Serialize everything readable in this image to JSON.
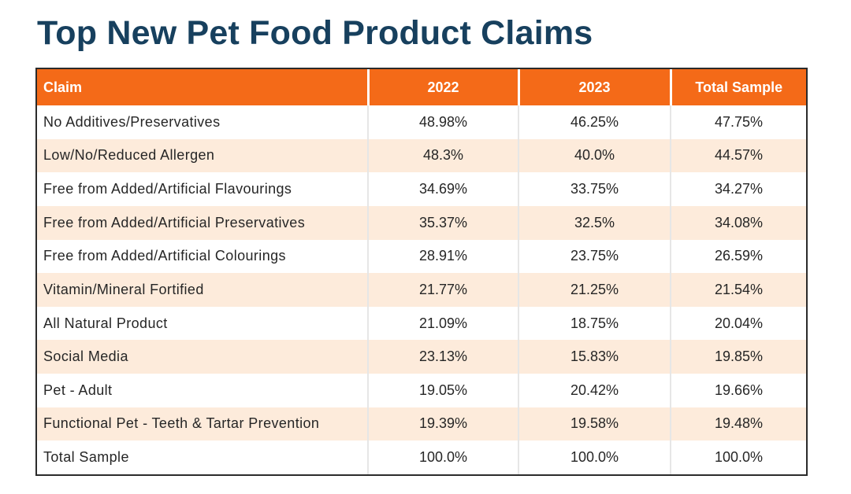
{
  "title": "Top New Pet Food Product Claims",
  "colors": {
    "header_bg": "#f46a18",
    "title": "#17405e",
    "alt_row": "#fdebdb"
  },
  "table": {
    "headers": [
      "Claim",
      "2022",
      "2023",
      "Total Sample"
    ],
    "rows": [
      [
        "No Additives/Preservatives",
        "48.98%",
        "46.25%",
        "47.75%"
      ],
      [
        "Low/No/Reduced Allergen",
        "48.3%",
        "40.0%",
        "44.57%"
      ],
      [
        "Free from Added/Artificial Flavourings",
        "34.69%",
        "33.75%",
        "34.27%"
      ],
      [
        "Free from Added/Artificial Preservatives",
        "35.37%",
        "32.5%",
        "34.08%"
      ],
      [
        "Free from Added/Artificial Colourings",
        "28.91%",
        "23.75%",
        "26.59%"
      ],
      [
        "Vitamin/Mineral Fortified",
        "21.77%",
        "21.25%",
        "21.54%"
      ],
      [
        "All Natural Product",
        "21.09%",
        "18.75%",
        "20.04%"
      ],
      [
        "Social Media",
        "23.13%",
        "15.83%",
        "19.85%"
      ],
      [
        "Pet - Adult",
        "19.05%",
        "20.42%",
        "19.66%"
      ],
      [
        "Functional Pet - Teeth & Tartar Prevention",
        "19.39%",
        "19.58%",
        "19.48%"
      ],
      [
        "Total Sample",
        "100.0%",
        "100.0%",
        "100.0%"
      ]
    ]
  }
}
